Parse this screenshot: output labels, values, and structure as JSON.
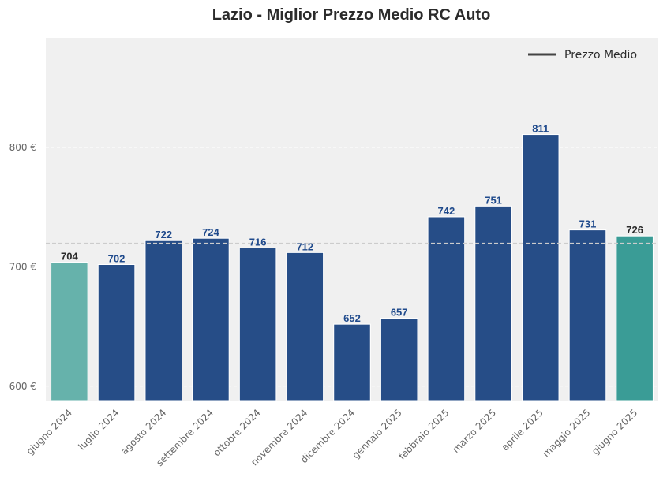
{
  "chart_data": {
    "type": "bar",
    "title": "Lazio - Miglior Prezzo Medio RC Auto",
    "categories": [
      "giugno 2024",
      "luglio 2024",
      "agosto 2024",
      "settembre 2024",
      "ottobre 2024",
      "novembre 2024",
      "dicembre 2024",
      "gennaio 2025",
      "febbraio 2025",
      "marzo 2025",
      "aprile 2025",
      "maggio 2025",
      "giugno 2025"
    ],
    "values": [
      704,
      702,
      722,
      724,
      716,
      712,
      652,
      657,
      742,
      751,
      811,
      731,
      726
    ],
    "bar_colors": [
      "#66b2ab",
      "#264d87",
      "#264d87",
      "#264d87",
      "#264d87",
      "#264d87",
      "#264d87",
      "#264d87",
      "#264d87",
      "#264d87",
      "#264d87",
      "#264d87",
      "#3a9c96"
    ],
    "label_colors": [
      "#2b2b2b",
      "#1f4a8c",
      "#1f4a8c",
      "#1f4a8c",
      "#1f4a8c",
      "#1f4a8c",
      "#1f4a8c",
      "#1f4a8c",
      "#1f4a8c",
      "#1f4a8c",
      "#1f4a8c",
      "#1f4a8c",
      "#2b2b2b"
    ],
    "ylim": [
      588,
      892
    ],
    "yticks": [
      600,
      700,
      800
    ],
    "ytick_labels": [
      "600 €",
      "700 €",
      "800 €"
    ],
    "reference_line": {
      "name": "Prezzo Medio",
      "value": 719.9
    },
    "xlabel": "",
    "ylabel": "",
    "grid": true,
    "legend_position": "top-right",
    "background": "#f0f0f0"
  }
}
